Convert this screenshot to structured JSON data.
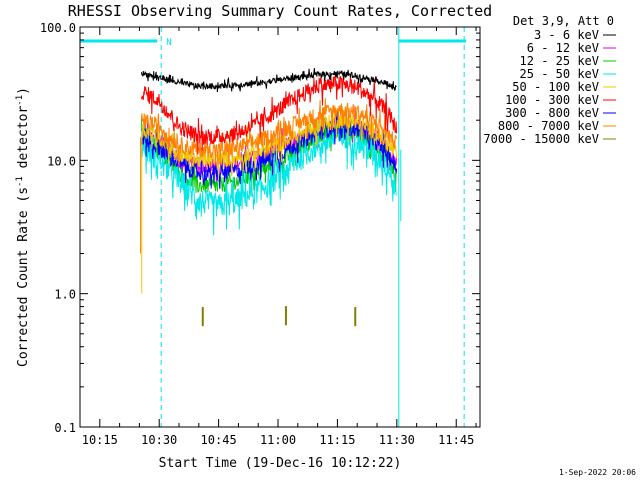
{
  "chart_data": {
    "type": "line",
    "title": "RHESSI Observing Summary Count Rates, Corrected",
    "xlabel": "Start Time (19-Dec-16 10:12:22)",
    "ylabel_main": "Corrected Count Rate (s",
    "ylabel_sup": "-1",
    "ylabel_mid": " detector",
    "ylabel_end": ")",
    "y_scale": "log",
    "ylim": [
      0.1,
      100.0
    ],
    "xlim": [
      "10:10",
      "11:51"
    ],
    "x_ticks": [
      {
        "t": 15,
        "label": "10:15"
      },
      {
        "t": 30,
        "label": "10:30"
      },
      {
        "t": 45,
        "label": "10:45"
      },
      {
        "t": 60,
        "label": "11:00"
      },
      {
        "t": 75,
        "label": "11:15"
      },
      {
        "t": 90,
        "label": "11:30"
      },
      {
        "t": 105,
        "label": "11:45"
      }
    ],
    "y_ticks": [
      {
        "v": 100.0,
        "label": "100.0"
      },
      {
        "v": 10.0,
        "label": "10.0"
      },
      {
        "v": 1.0,
        "label": "1.0"
      },
      {
        "v": 0.1,
        "label": "0.1"
      }
    ],
    "legend_placement": "right",
    "legend_header": "Det 3,9, Att 0",
    "series": [
      {
        "name": "3 - 6 keV",
        "color": "#000000",
        "points": [
          [
            25.5,
            45
          ],
          [
            30,
            42
          ],
          [
            35,
            38
          ],
          [
            40,
            36
          ],
          [
            45,
            36
          ],
          [
            50,
            37
          ],
          [
            55,
            38
          ],
          [
            60,
            40
          ],
          [
            65,
            42
          ],
          [
            70,
            44
          ],
          [
            75,
            45
          ],
          [
            80,
            43
          ],
          [
            85,
            40
          ],
          [
            88,
            37
          ],
          [
            90,
            34
          ]
        ]
      },
      {
        "name": "6 - 12 keV",
        "color": "#e000e0",
        "points": [
          [
            25.5,
            16
          ],
          [
            30,
            14
          ],
          [
            35,
            10
          ],
          [
            40,
            9
          ],
          [
            45,
            9
          ],
          [
            50,
            9.5
          ],
          [
            55,
            10.5
          ],
          [
            60,
            12
          ],
          [
            65,
            14
          ],
          [
            70,
            17
          ],
          [
            75,
            19
          ],
          [
            80,
            18
          ],
          [
            85,
            15
          ],
          [
            88,
            12
          ],
          [
            90,
            9.5
          ]
        ]
      },
      {
        "name": "12 - 25 keV",
        "color": "#00c800",
        "points": [
          [
            25.5,
            15
          ],
          [
            30,
            12
          ],
          [
            35,
            8
          ],
          [
            40,
            6.5
          ],
          [
            45,
            6.5
          ],
          [
            50,
            7
          ],
          [
            55,
            8
          ],
          [
            60,
            9.5
          ],
          [
            65,
            12
          ],
          [
            70,
            15
          ],
          [
            75,
            17
          ],
          [
            80,
            16
          ],
          [
            85,
            12.5
          ],
          [
            88,
            10
          ],
          [
            90,
            7.5
          ]
        ]
      },
      {
        "name": "25 - 50 keV",
        "color": "#00e8e8",
        "points": [
          [
            25.5,
            13
          ],
          [
            30,
            10
          ],
          [
            35,
            7
          ],
          [
            40,
            5
          ],
          [
            45,
            4.5
          ],
          [
            50,
            5
          ],
          [
            55,
            6
          ],
          [
            60,
            7.5
          ],
          [
            65,
            10
          ],
          [
            70,
            13
          ],
          [
            75,
            15
          ],
          [
            80,
            14
          ],
          [
            85,
            11
          ],
          [
            88,
            8.5
          ],
          [
            90,
            5.5
          ]
        ]
      },
      {
        "name": "50 - 100 keV",
        "color": "#f0c800",
        "points": [
          [
            25.5,
            17
          ],
          [
            30,
            15
          ],
          [
            35,
            11
          ],
          [
            40,
            10
          ],
          [
            45,
            10
          ],
          [
            50,
            10.5
          ],
          [
            55,
            11.5
          ],
          [
            60,
            13
          ],
          [
            65,
            15.5
          ],
          [
            70,
            18
          ],
          [
            75,
            20
          ],
          [
            80,
            19
          ],
          [
            85,
            16
          ],
          [
            88,
            13
          ],
          [
            90,
            11
          ]
        ]
      },
      {
        "name": "100 - 300 keV",
        "color": "#ff0000",
        "points": [
          [
            25.5,
            33
          ],
          [
            30,
            28
          ],
          [
            35,
            18
          ],
          [
            40,
            15
          ],
          [
            45,
            15
          ],
          [
            50,
            16
          ],
          [
            55,
            19
          ],
          [
            60,
            24
          ],
          [
            65,
            30
          ],
          [
            70,
            36
          ],
          [
            75,
            38
          ],
          [
            80,
            35
          ],
          [
            85,
            28
          ],
          [
            88,
            22
          ],
          [
            90,
            17
          ]
        ]
      },
      {
        "name": "300 - 800 keV",
        "color": "#0000ff",
        "points": [
          [
            25.5,
            15
          ],
          [
            30,
            12.5
          ],
          [
            35,
            9.5
          ],
          [
            40,
            8
          ],
          [
            45,
            8
          ],
          [
            50,
            8.5
          ],
          [
            55,
            9.5
          ],
          [
            60,
            11
          ],
          [
            65,
            13.5
          ],
          [
            70,
            16
          ],
          [
            75,
            18
          ],
          [
            80,
            17
          ],
          [
            85,
            13.5
          ],
          [
            88,
            11
          ],
          [
            90,
            8.5
          ]
        ]
      },
      {
        "name": "800 - 7000 keV",
        "color": "#ff8000",
        "points": [
          [
            25.5,
            20
          ],
          [
            30,
            18
          ],
          [
            35,
            13
          ],
          [
            40,
            12
          ],
          [
            45,
            12
          ],
          [
            50,
            12.5
          ],
          [
            55,
            14
          ],
          [
            60,
            16
          ],
          [
            65,
            19
          ],
          [
            70,
            22
          ],
          [
            75,
            24
          ],
          [
            80,
            23
          ],
          [
            85,
            19
          ],
          [
            88,
            15.5
          ],
          [
            90,
            13
          ]
        ]
      },
      {
        "name": "7000 - 15000 keV",
        "color": "#808000",
        "points": [
          [
            41,
            0.62
          ],
          [
            62,
            0.63
          ],
          [
            79.5,
            0.62
          ]
        ]
      }
    ],
    "flags": {
      "color": "#00e8e8",
      "flag_label": "N",
      "night_segments": [
        [
          10.0,
          29.5
        ],
        [
          90.5,
          107.5
        ]
      ],
      "saa_lines": [
        10.0,
        90.5
      ],
      "dashed_lines": [
        30.5,
        107.0
      ]
    }
  },
  "footer_timestamp": "1-Sep-2022 20:06"
}
